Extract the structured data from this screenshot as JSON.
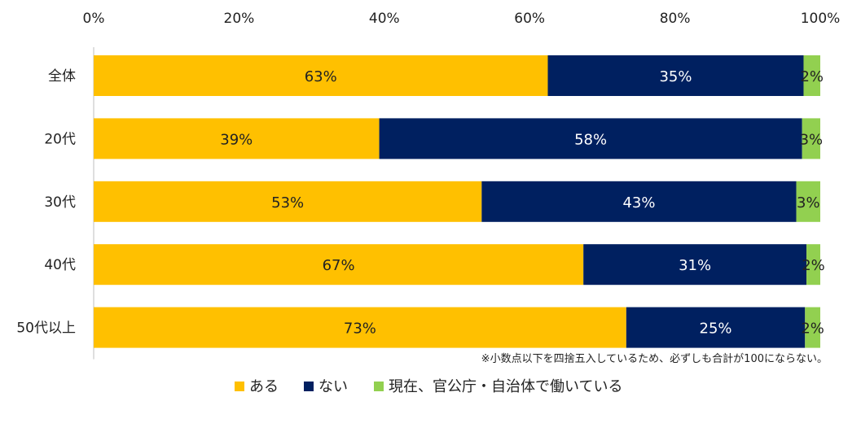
{
  "chart_data": {
    "type": "bar",
    "orientation": "horizontal",
    "stacked": true,
    "categories": [
      "全体",
      "20代",
      "30代",
      "40代",
      "50代以上"
    ],
    "series": [
      {
        "name": "ある",
        "values": [
          63,
          39,
          53,
          67,
          73
        ],
        "color": "#FFC000",
        "label_color": "#222222"
      },
      {
        "name": "ない",
        "values": [
          35,
          58,
          43,
          31,
          25
        ],
        "color": "#002060",
        "label_color": "#ffffff"
      },
      {
        "name": "現在、官公庁・自治体で働いている",
        "values": [
          2,
          3,
          3,
          2,
          2
        ],
        "color": "#92D050",
        "label_color": "#222222"
      }
    ],
    "bar_fractions": [
      [
        0.625,
        0.352,
        0.023
      ],
      [
        0.393,
        0.582,
        0.025
      ],
      [
        0.534,
        0.433,
        0.033
      ],
      [
        0.674,
        0.307,
        0.019
      ],
      [
        0.733,
        0.246,
        0.021
      ]
    ],
    "x_ticks": [
      "0%",
      "20%",
      "40%",
      "60%",
      "80%",
      "100%"
    ],
    "xlim": [
      0,
      100
    ],
    "axis_position": "top",
    "legend_position": "bottom",
    "grid": false,
    "note": "※小数点以下を四捨五入しているため、必ずしも合計が100にならない。"
  }
}
